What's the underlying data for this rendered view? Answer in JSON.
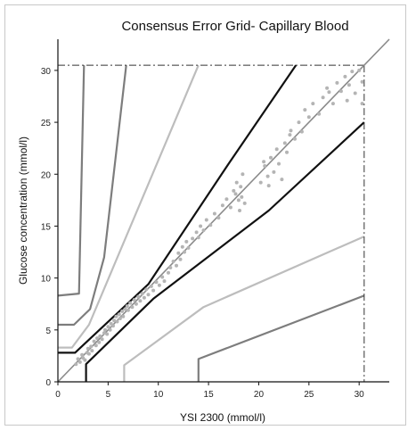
{
  "chart_data": {
    "type": "scatter",
    "title": "Consensus Error Grid- Capillary Blood",
    "xlabel": "YSI 2300 (mmol/l)",
    "ylabel": "Glucose concentration (mmol/l)",
    "xlim": [
      0,
      33
    ],
    "ylim": [
      0,
      33
    ],
    "xticks": [
      0,
      5,
      10,
      15,
      20,
      25,
      30
    ],
    "yticks": [
      0,
      5,
      10,
      15,
      20,
      25,
      30
    ],
    "grid": false,
    "reference_limit": 30.5,
    "zone_lines": [
      {
        "zone": "A-B",
        "color": "#111111",
        "points": [
          [
            0,
            2.8
          ],
          [
            1.7,
            2.8
          ],
          [
            9.0,
            9.4
          ],
          [
            17.0,
            21.0
          ],
          [
            23.7,
            30.5
          ]
        ]
      },
      {
        "zone": "A-B",
        "color": "#111111",
        "points": [
          [
            2.8,
            0
          ],
          [
            2.8,
            1.7
          ],
          [
            9.5,
            8.0
          ],
          [
            21.0,
            16.5
          ],
          [
            30.5,
            25.0
          ]
        ]
      },
      {
        "zone": "B-C",
        "color": "#bdbdbd",
        "points": [
          [
            0,
            3.3
          ],
          [
            1.4,
            3.3
          ],
          [
            3.1,
            5.5
          ],
          [
            14.0,
            30.5
          ]
        ]
      },
      {
        "zone": "B-C",
        "color": "#bdbdbd",
        "points": [
          [
            6.6,
            0
          ],
          [
            6.6,
            1.6
          ],
          [
            14.5,
            7.2
          ],
          [
            30.5,
            14.0
          ]
        ]
      },
      {
        "zone": "C-D",
        "color": "#7d7d7d",
        "points": [
          [
            0,
            5.5
          ],
          [
            1.6,
            5.5
          ],
          [
            3.2,
            7.0
          ],
          [
            4.6,
            12.0
          ],
          [
            6.8,
            30.5
          ]
        ]
      },
      {
        "zone": "D-E",
        "color": "#7d7d7d",
        "points": [
          [
            0,
            8.3
          ],
          [
            2.1,
            8.5
          ],
          [
            2.6,
            30.5
          ]
        ]
      },
      {
        "zone": "D-E",
        "color": "#7d7d7d",
        "points": [
          [
            14.0,
            0
          ],
          [
            14.0,
            2.2
          ],
          [
            30.5,
            8.3
          ]
        ]
      }
    ],
    "identity_line": [
      [
        0,
        0
      ],
      [
        33,
        33
      ]
    ],
    "series": [
      {
        "color": "#b4b4b4",
        "points": [
          [
            1.8,
            1.7
          ],
          [
            2.0,
            2.2
          ],
          [
            2.2,
            1.9
          ],
          [
            2.4,
            2.6
          ],
          [
            2.5,
            2.3
          ],
          [
            2.7,
            2.1
          ],
          [
            2.9,
            2.8
          ],
          [
            3.0,
            3.2
          ],
          [
            3.1,
            2.7
          ],
          [
            3.3,
            3.4
          ],
          [
            3.4,
            3.0
          ],
          [
            3.6,
            3.9
          ],
          [
            3.8,
            3.5
          ],
          [
            3.9,
            4.2
          ],
          [
            4.1,
            3.8
          ],
          [
            4.2,
            4.4
          ],
          [
            4.4,
            4.1
          ],
          [
            4.6,
            4.7
          ],
          [
            4.7,
            5.0
          ],
          [
            4.9,
            4.6
          ],
          [
            5.0,
            5.3
          ],
          [
            5.2,
            5.0
          ],
          [
            5.3,
            5.6
          ],
          [
            5.5,
            5.4
          ],
          [
            5.6,
            5.9
          ],
          [
            5.8,
            6.3
          ],
          [
            5.9,
            5.8
          ],
          [
            6.1,
            6.5
          ],
          [
            6.2,
            6.1
          ],
          [
            6.4,
            6.8
          ],
          [
            6.5,
            6.3
          ],
          [
            6.7,
            7.0
          ],
          [
            6.9,
            7.3
          ],
          [
            7.0,
            6.9
          ],
          [
            7.2,
            7.6
          ],
          [
            7.4,
            7.2
          ],
          [
            7.6,
            7.9
          ],
          [
            7.8,
            7.5
          ],
          [
            8.0,
            8.2
          ],
          [
            8.2,
            7.8
          ],
          [
            8.4,
            8.5
          ],
          [
            8.6,
            8.1
          ],
          [
            8.8,
            8.9
          ],
          [
            9.0,
            8.4
          ],
          [
            9.3,
            9.2
          ],
          [
            9.5,
            8.8
          ],
          [
            9.8,
            9.6
          ],
          [
            10.1,
            9.3
          ],
          [
            10.4,
            10.1
          ],
          [
            10.6,
            9.7
          ],
          [
            11.0,
            10.5
          ],
          [
            11.2,
            11.0
          ],
          [
            11.5,
            11.6
          ],
          [
            11.8,
            11.2
          ],
          [
            12.0,
            12.4
          ],
          [
            12.2,
            11.8
          ],
          [
            12.4,
            13.0
          ],
          [
            12.6,
            12.5
          ],
          [
            12.8,
            13.5
          ],
          [
            13.0,
            12.9
          ],
          [
            13.4,
            13.8
          ],
          [
            13.8,
            14.4
          ],
          [
            14.0,
            13.9
          ],
          [
            14.2,
            15.0
          ],
          [
            14.5,
            14.6
          ],
          [
            14.8,
            15.6
          ],
          [
            15.2,
            15.1
          ],
          [
            15.6,
            16.2
          ],
          [
            16.0,
            15.8
          ],
          [
            16.4,
            17.0
          ],
          [
            16.8,
            17.6
          ],
          [
            17.2,
            16.8
          ],
          [
            17.5,
            18.4
          ],
          [
            17.8,
            19.2
          ],
          [
            18.0,
            17.5
          ],
          [
            18.2,
            18.8
          ],
          [
            18.4,
            20.0
          ],
          [
            18.6,
            17.2
          ],
          [
            17.7,
            18.1
          ],
          [
            18.1,
            16.5
          ],
          [
            18.3,
            17.8
          ],
          [
            20.2,
            19.2
          ],
          [
            20.6,
            20.8
          ],
          [
            20.9,
            19.8
          ],
          [
            21.2,
            21.6
          ],
          [
            21.5,
            20.2
          ],
          [
            21.8,
            22.4
          ],
          [
            22.0,
            21.0
          ],
          [
            22.3,
            19.5
          ],
          [
            22.6,
            23.0
          ],
          [
            23.2,
            24.2
          ],
          [
            23.6,
            23.4
          ],
          [
            24.0,
            25.0
          ],
          [
            24.3,
            24.1
          ],
          [
            24.6,
            26.2
          ],
          [
            25.0,
            25.5
          ],
          [
            25.4,
            26.8
          ],
          [
            26.0,
            25.8
          ],
          [
            26.4,
            27.4
          ],
          [
            27.0,
            27.9
          ],
          [
            27.4,
            26.8
          ],
          [
            27.8,
            28.8
          ],
          [
            28.2,
            28.0
          ],
          [
            28.6,
            29.4
          ],
          [
            29.0,
            28.6
          ],
          [
            29.3,
            29.9
          ],
          [
            29.6,
            27.8
          ],
          [
            30.0,
            30.0
          ],
          [
            30.3,
            28.9
          ],
          [
            30.3,
            26.8
          ],
          [
            28.8,
            27.1
          ],
          [
            26.8,
            28.3
          ],
          [
            22.8,
            22.1
          ],
          [
            23.1,
            23.8
          ],
          [
            21.0,
            18.9
          ],
          [
            20.5,
            21.2
          ]
        ]
      }
    ]
  }
}
